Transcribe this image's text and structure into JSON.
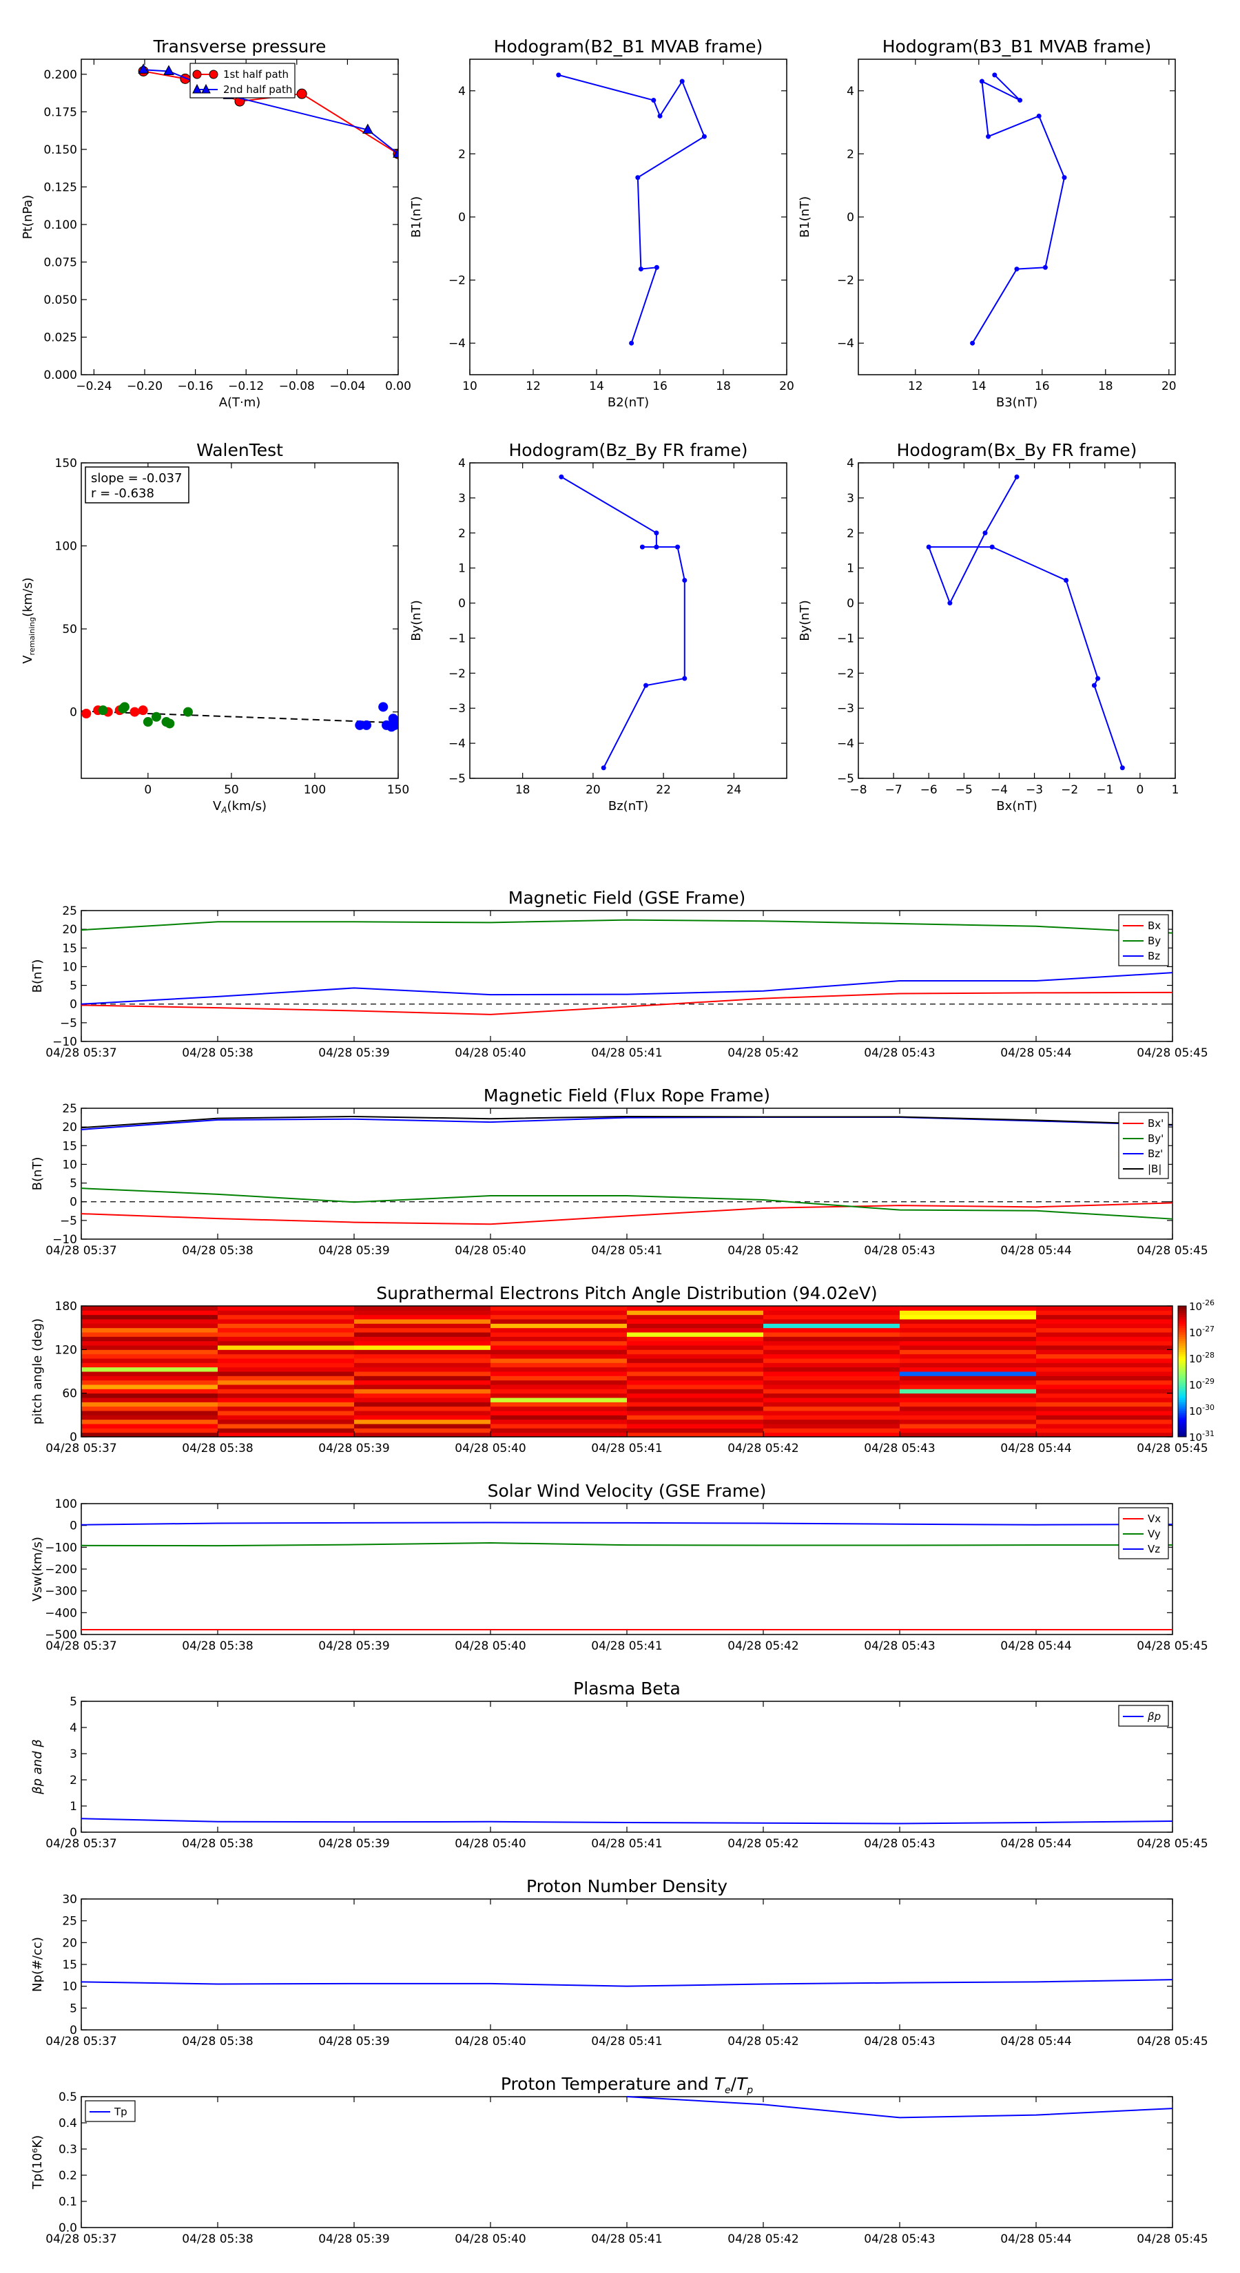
{
  "colors": {
    "red": "#ff0000",
    "green": "#008000",
    "blue": "#0000ff",
    "black": "#000000"
  },
  "time_ticks": [
    "04/28 05:37",
    "04/28 05:38",
    "04/28 05:39",
    "04/28 05:40",
    "04/28 05:41",
    "04/28 05:42",
    "04/28 05:43",
    "04/28 05:44",
    "04/28 05:45"
  ],
  "chart_data": [
    {
      "id": "transverse-pressure",
      "type": "line",
      "title": "Transverse pressure",
      "xlabel": "A(T·m)",
      "ylabel": "Pt(nPa)",
      "xlim": [
        -0.25,
        0.0
      ],
      "ylim": [
        0.0,
        0.21
      ],
      "xticks": [
        -0.24,
        -0.2,
        -0.16,
        -0.12,
        -0.08,
        -0.04,
        0.0
      ],
      "xtick_labels": [
        "−0.24",
        "−0.20",
        "−0.16",
        "−0.12",
        "−0.08",
        "−0.04",
        "0.00"
      ],
      "yticks": [
        0.0,
        0.025,
        0.05,
        0.075,
        0.1,
        0.125,
        0.15,
        0.175,
        0.2
      ],
      "ytick_labels": [
        "0.000",
        "0.025",
        "0.050",
        "0.075",
        "0.100",
        "0.125",
        "0.150",
        "0.175",
        "0.200"
      ],
      "legend": "top-center",
      "series": [
        {
          "name": "1st half path",
          "color": "#ff0000",
          "marker": "circle",
          "x": [
            -0.201,
            -0.168,
            -0.125,
            -0.076,
            0.0
          ],
          "y": [
            0.202,
            0.197,
            0.182,
            0.187,
            0.147
          ]
        },
        {
          "name": "2nd half path",
          "color": "#0000ff",
          "marker": "triangle",
          "x": [
            0.0,
            -0.024,
            -0.134,
            -0.181,
            -0.201
          ],
          "y": [
            0.147,
            0.163,
            0.186,
            0.202,
            0.203
          ]
        }
      ]
    },
    {
      "id": "hodogram-b2-b1",
      "type": "line",
      "title": "Hodogram(B2_B1 MVAB frame)",
      "xlabel": "B2(nT)",
      "ylabel": "B1(nT)",
      "xlim": [
        10,
        20
      ],
      "ylim": [
        -5,
        5
      ],
      "xticks": [
        10,
        12,
        14,
        16,
        18,
        20
      ],
      "xtick_labels": [
        "10",
        "12",
        "14",
        "16",
        "18",
        "20"
      ],
      "yticks": [
        -4,
        -2,
        0,
        2,
        4
      ],
      "ytick_labels": [
        "−4",
        "−2",
        "0",
        "2",
        "4"
      ],
      "series": [
        {
          "color": "#0000ff",
          "marker": "dot",
          "x": [
            12.8,
            15.8,
            16.0,
            16.7,
            17.4,
            15.3,
            15.4,
            15.9,
            15.1
          ],
          "y": [
            4.5,
            3.7,
            3.2,
            4.3,
            2.55,
            1.25,
            -1.65,
            -1.6,
            -4.0
          ]
        }
      ]
    },
    {
      "id": "hodogram-b3-b1",
      "type": "line",
      "title": "Hodogram(B3_B1 MVAB frame)",
      "xlabel": "B3(nT)",
      "ylabel": "B1(nT)",
      "xlim": [
        10.2,
        20.2
      ],
      "ylim": [
        -5,
        5
      ],
      "xticks": [
        12,
        14,
        16,
        18,
        20
      ],
      "xtick_labels": [
        "12",
        "14",
        "16",
        "18",
        "20"
      ],
      "yticks": [
        -4,
        -2,
        0,
        2,
        4
      ],
      "ytick_labels": [
        "−4",
        "−2",
        "0",
        "2",
        "4"
      ],
      "series": [
        {
          "color": "#0000ff",
          "marker": "dot",
          "x": [
            14.5,
            15.3,
            14.1,
            14.3,
            15.9,
            16.7,
            16.1,
            15.2,
            13.8
          ],
          "y": [
            4.5,
            3.7,
            4.3,
            2.55,
            3.2,
            1.25,
            -1.6,
            -1.65,
            -4.0
          ]
        }
      ]
    },
    {
      "id": "walen-test",
      "type": "scatter",
      "title": "WalenTest",
      "xlabel": "V_A(km/s)",
      "ylabel": "V_remaining(km/s)",
      "xlim": [
        -40,
        150
      ],
      "ylim": [
        -40,
        150
      ],
      "xticks": [
        0,
        50,
        100,
        150
      ],
      "xtick_labels": [
        "0",
        "50",
        "100",
        "150"
      ],
      "yticks": [
        0,
        50,
        100,
        150
      ],
      "ytick_labels": [
        "0",
        "50",
        "100",
        "150"
      ],
      "annotation": [
        "slope = -0.037",
        "r = -0.638"
      ],
      "fit": {
        "slope": -0.037,
        "intercept": -1.0
      },
      "series": [
        {
          "color": "#ff0000",
          "x": [
            -37,
            -30,
            -24,
            -17,
            -8,
            -3
          ],
          "y": [
            -1,
            1,
            0,
            1,
            0,
            1
          ]
        },
        {
          "color": "#008000",
          "x": [
            -27,
            -15,
            -14,
            0,
            5,
            11,
            13,
            24
          ],
          "y": [
            1,
            2,
            3,
            -6,
            -3,
            -6,
            -7,
            0
          ]
        },
        {
          "color": "#0000ff",
          "x": [
            127,
            131,
            141,
            143,
            146,
            147,
            148,
            149
          ],
          "y": [
            -8,
            -8,
            3,
            -8,
            -9,
            -4,
            -8,
            -7
          ]
        }
      ]
    },
    {
      "id": "hodogram-bz-by",
      "type": "line",
      "title": "Hodogram(Bz_By FR frame)",
      "xlabel": "Bz(nT)",
      "ylabel": "By(nT)",
      "xlim": [
        16.5,
        25.5
      ],
      "ylim": [
        -5,
        4
      ],
      "xticks": [
        18,
        20,
        22,
        24
      ],
      "xtick_labels": [
        "18",
        "20",
        "22",
        "24"
      ],
      "yticks": [
        -5,
        -4,
        -3,
        -2,
        -1,
        0,
        1,
        2,
        3,
        4
      ],
      "ytick_labels": [
        "−5",
        "−4",
        "−3",
        "−2",
        "−1",
        "0",
        "1",
        "2",
        "3",
        "4"
      ],
      "series": [
        {
          "color": "#0000ff",
          "marker": "dot",
          "x": [
            19.1,
            21.8,
            21.8,
            21.4,
            22.4,
            22.6,
            22.6,
            21.5,
            20.3
          ],
          "y": [
            3.6,
            2.0,
            1.6,
            1.6,
            1.6,
            0.65,
            -2.15,
            -2.35,
            -4.7
          ]
        }
      ]
    },
    {
      "id": "hodogram-bx-by",
      "type": "line",
      "title": "Hodogram(Bx_By FR frame)",
      "xlabel": "Bx(nT)",
      "ylabel": "By(nT)",
      "xlim": [
        -8,
        1
      ],
      "ylim": [
        -5,
        4
      ],
      "xticks": [
        -8,
        -7,
        -6,
        -5,
        -4,
        -3,
        -2,
        -1,
        0,
        1
      ],
      "xtick_labels": [
        "−8",
        "−7",
        "−6",
        "−5",
        "−4",
        "−3",
        "−2",
        "−1",
        "0",
        "1"
      ],
      "yticks": [
        -5,
        -4,
        -3,
        -2,
        -1,
        0,
        1,
        2,
        3,
        4
      ],
      "ytick_labels": [
        "−5",
        "−4",
        "−3",
        "−2",
        "−1",
        "0",
        "1",
        "2",
        "3",
        "4"
      ],
      "series": [
        {
          "color": "#0000ff",
          "marker": "dot",
          "x": [
            -3.5,
            -4.4,
            -5.4,
            -6.0,
            -4.2,
            -2.1,
            -1.2,
            -1.3,
            -0.5
          ],
          "y": [
            3.6,
            2.0,
            0.0,
            1.6,
            1.6,
            0.65,
            -2.15,
            -2.35,
            -4.7
          ]
        }
      ]
    },
    {
      "id": "magnetic-field-gse",
      "type": "line",
      "title": "Magnetic Field (GSE Frame)",
      "ylabel": "B(nT)",
      "ylim": [
        -10,
        25
      ],
      "yticks": [
        -10,
        -5,
        0,
        5,
        10,
        15,
        20,
        25
      ],
      "ytick_labels": [
        "−10",
        "−5",
        "0",
        "5",
        "10",
        "15",
        "20",
        "25"
      ],
      "zero_line": true,
      "legend": "top-right",
      "series": [
        {
          "name": "Bx",
          "color": "#ff0000",
          "values": [
            -0.3,
            -1.0,
            -1.8,
            -2.8,
            -0.7,
            1.5,
            2.8,
            3.0,
            3.1
          ]
        },
        {
          "name": "By",
          "color": "#008000",
          "values": [
            19.8,
            22.0,
            22.0,
            21.8,
            22.5,
            22.2,
            21.5,
            20.8,
            19.0
          ]
        },
        {
          "name": "Bz",
          "color": "#0000ff",
          "values": [
            0.0,
            2.0,
            4.3,
            2.5,
            2.6,
            3.5,
            6.2,
            6.2,
            8.4
          ]
        }
      ]
    },
    {
      "id": "magnetic-field-fr",
      "type": "line",
      "title": "Magnetic Field (Flux Rope Frame)",
      "ylabel": "B(nT)",
      "ylim": [
        -10,
        25
      ],
      "yticks": [
        -10,
        -5,
        0,
        5,
        10,
        15,
        20,
        25
      ],
      "ytick_labels": [
        "−10",
        "−5",
        "0",
        "5",
        "10",
        "15",
        "20",
        "25"
      ],
      "zero_line": true,
      "legend": "top-right",
      "series": [
        {
          "name": "Bx'",
          "color": "#ff0000",
          "values": [
            -3.2,
            -4.5,
            -5.5,
            -6.0,
            -3.8,
            -1.7,
            -1.0,
            -1.4,
            -0.3
          ]
        },
        {
          "name": "By'",
          "color": "#008000",
          "values": [
            3.6,
            2.0,
            -0.1,
            1.6,
            1.6,
            0.5,
            -2.2,
            -2.4,
            -4.6
          ]
        },
        {
          "name": "Bz'",
          "color": "#0000ff",
          "values": [
            19.3,
            21.9,
            22.1,
            21.3,
            22.5,
            22.6,
            22.6,
            21.6,
            20.5
          ]
        },
        {
          "name": "|B|",
          "color": "#000000",
          "values": [
            19.8,
            22.3,
            22.8,
            22.2,
            22.8,
            22.7,
            22.7,
            21.8,
            20.6
          ]
        }
      ]
    },
    {
      "id": "pitch-angle",
      "type": "heatmap",
      "title": "Suprathermal Electrons Pitch Angle Distribution (94.02eV)",
      "ylabel": "pitch angle (deg)",
      "ylim": [
        0,
        180
      ],
      "yticks": [
        0,
        60,
        120,
        180
      ],
      "ytick_labels": [
        "0",
        "60",
        "120",
        "180"
      ],
      "colorbar": {
        "scale": "log",
        "min_exp": -31,
        "max_exp": -26,
        "tick_exps": [
          "-26",
          "-27",
          "-28",
          "-29",
          "-30",
          "-31"
        ],
        "base": "10"
      },
      "n_times": 8,
      "n_bins": 30,
      "values": [
        [
          -26.1,
          -26.8,
          -26.6,
          -27.1,
          -26.3,
          -26.2,
          -26.9,
          -27.3,
          -26.4,
          -26.1,
          -26.7,
          -27.5,
          -26.9,
          -26.5,
          -26.3,
          -28.4,
          -26.7,
          -26.4,
          -26.8,
          -27.0,
          -26.3,
          -26.5,
          -26.2,
          -26.9,
          -27.2,
          -26.4,
          -26.5,
          -26.1,
          -26.6,
          -26.3
        ],
        [
          -26.6,
          -26.2,
          -27.0,
          -26.3,
          -26.5,
          -26.9,
          -26.4,
          -27.1,
          -26.6,
          -26.3,
          -26.8,
          -26.4,
          -27.3,
          -26.9,
          -26.2,
          -26.5,
          -26.7,
          -26.6,
          -26.8,
          -26.4,
          -27.8,
          -26.3,
          -26.5,
          -26.9,
          -26.7,
          -27.0,
          -26.5,
          -26.8,
          -26.4,
          -26.6
        ],
        [
          -26.3,
          -26.9,
          -26.2,
          -27.4,
          -26.6,
          -26.4,
          -26.8,
          -26.2,
          -26.5,
          -26.7,
          -27.2,
          -26.3,
          -26.6,
          -26.2,
          -26.9,
          -26.5,
          -26.4,
          -26.8,
          -26.7,
          -26.3,
          -27.9,
          -26.6,
          -26.5,
          -26.2,
          -26.8,
          -26.4,
          -27.3,
          -26.6,
          -26.4,
          -26.3
        ],
        [
          -26.5,
          -26.3,
          -26.8,
          -26.5,
          -26.2,
          -26.6,
          -26.4,
          -26.9,
          -28.3,
          -26.4,
          -26.7,
          -26.5,
          -26.3,
          -26.9,
          -26.6,
          -26.4,
          -26.8,
          -27.1,
          -26.5,
          -26.3,
          -26.6,
          -26.9,
          -26.4,
          -26.7,
          -26.5,
          -27.6,
          -26.3,
          -26.8,
          -26.5,
          -26.7
        ],
        [
          -26.8,
          -26.3,
          -26.6,
          -26.4,
          -26.9,
          -26.5,
          -26.2,
          -26.7,
          -26.4,
          -26.6,
          -26.3,
          -26.8,
          -26.6,
          -26.4,
          -26.9,
          -26.5,
          -26.7,
          -26.3,
          -26.5,
          -26.8,
          -26.4,
          -26.6,
          -26.7,
          -28.1,
          -26.5,
          -26.3,
          -26.6,
          -26.4,
          -27.5,
          -26.6
        ],
        [
          -26.6,
          -26.8,
          -26.4,
          -26.3,
          -26.7,
          -26.5,
          -26.9,
          -26.4,
          -26.6,
          -26.3,
          -26.8,
          -26.5,
          -26.4,
          -26.7,
          -26.6,
          -26.3,
          -26.5,
          -26.8,
          -26.6,
          -26.4,
          -26.7,
          -26.5,
          -26.3,
          -26.9,
          -26.6,
          -29.3,
          -26.4,
          -26.7,
          -26.5,
          -26.6
        ],
        [
          -26.3,
          -26.6,
          -26.9,
          -26.4,
          -26.7,
          -26.5,
          -26.3,
          -26.8,
          -26.6,
          -26.4,
          -29.0,
          -26.7,
          -26.5,
          -26.3,
          -30.0,
          -26.6,
          -26.4,
          -26.7,
          -26.5,
          -26.9,
          -26.4,
          -26.6,
          -26.3,
          -26.8,
          -26.5,
          -26.7,
          -26.4,
          -28.0,
          -27.9,
          -26.6
        ],
        [
          -26.4,
          -26.7,
          -26.5,
          -26.8,
          -26.3,
          -26.6,
          -26.4,
          -26.9,
          -26.5,
          -26.7,
          -26.4,
          -26.6,
          -26.8,
          -26.3,
          -26.5,
          -26.7,
          -26.4,
          -26.6,
          -26.9,
          -26.5,
          -26.3,
          -26.7,
          -26.6,
          -26.4,
          -26.8,
          -26.5,
          -26.6,
          -26.3,
          -26.7,
          -26.5
        ]
      ]
    },
    {
      "id": "solar-wind-velocity",
      "type": "line",
      "title": "Solar Wind Velocity (GSE Frame)",
      "ylabel": "Vsw(km/s)",
      "ylim": [
        -500,
        100
      ],
      "yticks": [
        -500,
        -400,
        -300,
        -200,
        -100,
        0,
        100
      ],
      "ytick_labels": [
        "−500",
        "−400",
        "−300",
        "−200",
        "−100",
        "0",
        "100"
      ],
      "legend": "top-right",
      "series": [
        {
          "name": "Vx",
          "color": "#ff0000",
          "values": [
            -478,
            -478,
            -478,
            -478,
            -478,
            -478,
            -478,
            -478,
            -478
          ]
        },
        {
          "name": "Vy",
          "color": "#008000",
          "values": [
            -92,
            -93,
            -88,
            -80,
            -90,
            -91,
            -91,
            -90,
            -90
          ]
        },
        {
          "name": "Vz",
          "color": "#0000ff",
          "values": [
            3,
            10,
            12,
            13,
            12,
            10,
            6,
            3,
            5
          ]
        }
      ]
    },
    {
      "id": "plasma-beta",
      "type": "line",
      "title": "Plasma Beta",
      "ylabel": "βp and β",
      "ylim": [
        0,
        5
      ],
      "yticks": [
        0,
        1,
        2,
        3,
        4,
        5
      ],
      "ytick_labels": [
        "0",
        "1",
        "2",
        "3",
        "4",
        "5"
      ],
      "legend": "top-right",
      "series": [
        {
          "name": "βp",
          "color": "#0000ff",
          "values": [
            0.52,
            0.4,
            0.39,
            0.4,
            0.37,
            0.35,
            0.33,
            0.37,
            0.42
          ]
        }
      ]
    },
    {
      "id": "proton-density",
      "type": "line",
      "title": "Proton Number Density",
      "ylabel": "Np(#/cc)",
      "ylim": [
        0,
        30
      ],
      "yticks": [
        0,
        5,
        10,
        15,
        20,
        25,
        30
      ],
      "ytick_labels": [
        "0",
        "5",
        "10",
        "15",
        "20",
        "25",
        "30"
      ],
      "series": [
        {
          "color": "#0000ff",
          "values": [
            11.0,
            10.5,
            10.6,
            10.6,
            10.0,
            10.5,
            10.8,
            11.0,
            11.5
          ]
        }
      ]
    },
    {
      "id": "proton-temperature",
      "type": "line",
      "title": "Proton Temperature and Te/Tp",
      "ylabel": "Tp(10⁶K)",
      "ylim": [
        0,
        0.5
      ],
      "yticks": [
        0,
        0.1,
        0.2,
        0.3,
        0.4,
        0.5
      ],
      "ytick_labels": [
        "0.0",
        "0.1",
        "0.2",
        "0.3",
        "0.4",
        "0.5"
      ],
      "legend": "top-left",
      "series": [
        {
          "name": "Tp",
          "color": "#0000ff",
          "values": [
            null,
            null,
            null,
            null,
            0.5,
            0.47,
            0.42,
            0.43,
            0.455
          ]
        }
      ]
    }
  ]
}
